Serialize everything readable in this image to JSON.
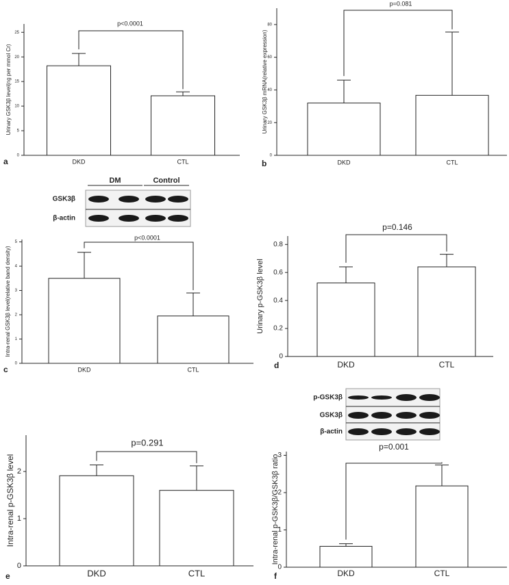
{
  "chart_data": [
    {
      "type": "bar",
      "panel": "a",
      "ylabel": "Urinary GSK3β level(ng per mmol Cr)",
      "categories": [
        "DKD",
        "CTL"
      ],
      "values": [
        18.2,
        12.1
      ],
      "errors": [
        2.5,
        0.8
      ],
      "annotation": "p<0.0001",
      "ylim": [
        0,
        26.7
      ],
      "yticks": [
        0,
        5,
        10,
        15,
        20,
        25
      ],
      "color": "#ffffff"
    },
    {
      "type": "bar",
      "panel": "b",
      "ylabel": "Urinary GSK3β mRNA(relative expression)",
      "categories": [
        "DKD",
        "CTL"
      ],
      "values": [
        32,
        36.7
      ],
      "errors": [
        14,
        38.7
      ],
      "annotation": "p=0.081",
      "ylim": [
        0,
        90
      ],
      "yticks": [
        0,
        20,
        40,
        60,
        80
      ],
      "color": "#ffffff"
    },
    {
      "type": "bar",
      "panel": "c",
      "ylabel": "Intra-renal GSK3β level(relative band density)",
      "categories": [
        "DKD",
        "CTL"
      ],
      "values": [
        3.5,
        1.95
      ],
      "errors": [
        1.07,
        0.95
      ],
      "annotation": "p<0.0001",
      "ylim": [
        0,
        5.1
      ],
      "yticks": [
        0,
        1,
        2,
        3,
        4,
        5
      ],
      "color": "#ffffff",
      "blot": {
        "groups": [
          "DM",
          "Control"
        ],
        "rows": [
          "GSK3β",
          "β-actin"
        ]
      }
    },
    {
      "type": "bar",
      "panel": "d",
      "ylabel": "Urinary p-GSK3β level",
      "categories": [
        "DKD",
        "CTL"
      ],
      "values": [
        0.525,
        0.64
      ],
      "errors": [
        0.115,
        0.09
      ],
      "annotation": "p=0.146",
      "ylim": [
        0,
        0.86
      ],
      "yticks": [
        0,
        0.2,
        0.4,
        0.6,
        0.8
      ],
      "color": "#ffffff"
    },
    {
      "type": "bar",
      "panel": "e",
      "ylabel": "Intra-renal p-GSK3β level",
      "categories": [
        "DKD",
        "CTL"
      ],
      "values": [
        1.91,
        1.6
      ],
      "errors": [
        0.23,
        0.52
      ],
      "annotation": "p=0.291",
      "ylim": [
        0,
        2.77
      ],
      "yticks": [
        0,
        1,
        2
      ],
      "color": "#ffffff"
    },
    {
      "type": "bar",
      "panel": "f",
      "ylabel": "Intra-renal p-GSK3β/GSK3β ratio",
      "categories": [
        "DKD",
        "CTL"
      ],
      "values": [
        0.56,
        2.18
      ],
      "errors": [
        0.07,
        0.56
      ],
      "annotation": "p=0.001",
      "ylim": [
        0,
        3.1
      ],
      "yticks": [
        0,
        1,
        2,
        3
      ],
      "color": "#ffffff",
      "blot": {
        "rows": [
          "p-GSK3β",
          "GSK3β",
          "β-actin"
        ]
      }
    }
  ]
}
